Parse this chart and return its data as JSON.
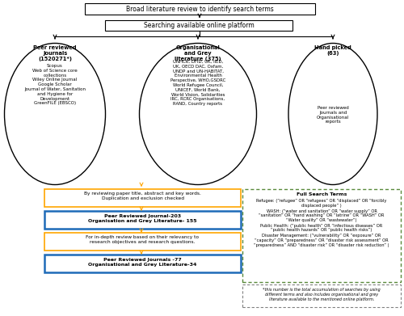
{
  "box1_text": "Broad literature review to identify search terms",
  "box2_text": "Searching available online platform",
  "ellipse1_title": "Peer reviewed\nJournals\n(1520271*)",
  "ellipse1_body": "Scopus\nWeb of Science core\ncollections\nWiley Online Journal\nGoogle Scholar\nJournal of Water, Sanitation\nand Hygiene for\nDevelopment\nGreenFILE (EBSCO)",
  "ellipse2_title": "Organisational\nand Grey\nliterature (375)",
  "ellipse2_body": "UNHCR, DFID, UK, IIED,\nUK, OECD DAC, Oxfam,\nUNDP and UN-HABITAT,\nEnvironmental Health\nPerspective, WHO,GSDRC\nWorld Refugee Council,\nUNICEF, World Bank,\nWorld Vision, Solidarities\nIRC, RCRC Organisations,\nRAND, Country reports",
  "ellipse3_title": "Hand picked\n(63)",
  "ellipse3_body": "Peer reviewed\nJournals and\nOrganisational\nreports",
  "orange_box1_text": "By reviewing paper title, abstract and key words.\nDuplication and exclusion checked",
  "blue_box1_text": "Peer Reviewed Journal-203\nOrganisation and Grey Literature- 155",
  "orange_box2_text": "For in-depth review based on their relevancy to\nresearch objectives and research questions.",
  "blue_box2_text": "Peer Reviewed Journals -77\nOrganisational and Grey Literature-34",
  "full_search_title": "Full Search Terms",
  "refugee_bold": "Refugee:",
  "refugee_text": " (“refugee” OR “refugees” OR “displaced” OR “forcibly\ndisplaced people” )",
  "wash_bold": "WASH:",
  "wash_text": " (“water and sanitation” OR “water supply” OR\n“sanitation” OR “hand washing” OR “latrine” OR “WASH” OR\n“Water quality” OR “wastewater”)",
  "ph_bold": "Public Health:",
  "ph_text": " (“public health” OR “infectious diseases” OR\n“public health hazards” OR “public health risks”)",
  "dm_bold": "Disaster Management:",
  "dm_text": " (“vulnerability” OR “exposure” OR\n“capacity” OR “preparedness” OR “disaster risk assessment” OR\n“preparedness” AND “disaster risk” OR “disaster risk reduction” )",
  "footnote_text": "*this number is the total accumulation of searches by using\ndifferent terms and also includes organisational and grey\nliterature available to the mentioned online platform.",
  "color_orange": "#FFA500",
  "color_blue_edge": "#1E6BB8",
  "color_green_dashed": "#5A8A3C",
  "color_black": "#000000",
  "color_white": "#FFFFFF",
  "color_gray_dashed": "#808080",
  "bg_color": "#FFFFFF"
}
